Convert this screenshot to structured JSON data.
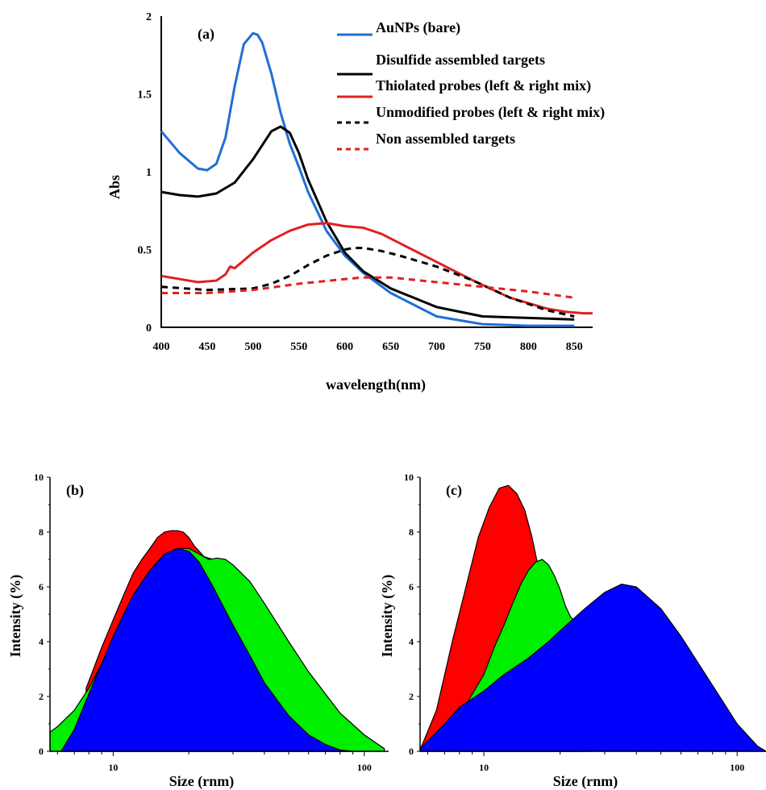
{
  "chart_data": [
    {
      "panel": "(a)",
      "type": "line",
      "xlabel": "wavelength(nm)",
      "ylabel": "Abs",
      "xlim": [
        400,
        870
      ],
      "ylim": [
        0,
        2
      ],
      "xticks": [
        "400",
        "450",
        "500",
        "550",
        "600",
        "650",
        "700",
        "750",
        "800",
        "850"
      ],
      "yticks": [
        "0",
        "0.5",
        "1",
        "1.5",
        "2"
      ],
      "grid": false,
      "legend_position": "top-right",
      "series": [
        {
          "name": "AuNPs (bare)",
          "color": "#1f6fd6",
          "dash": "solid",
          "x": [
            400,
            420,
            440,
            450,
            460,
            470,
            480,
            490,
            500,
            505,
            510,
            520,
            530,
            540,
            550,
            560,
            580,
            600,
            620,
            650,
            700,
            750,
            800,
            850
          ],
          "y": [
            1.26,
            1.12,
            1.02,
            1.01,
            1.05,
            1.22,
            1.55,
            1.82,
            1.89,
            1.88,
            1.83,
            1.63,
            1.38,
            1.18,
            1.03,
            0.87,
            0.62,
            0.46,
            0.35,
            0.22,
            0.07,
            0.02,
            0.01,
            0.01
          ]
        },
        {
          "name": "Disulfide assembled targets",
          "color": "#000000",
          "dash": "solid",
          "x": [
            400,
            420,
            440,
            460,
            480,
            500,
            510,
            520,
            530,
            540,
            550,
            560,
            580,
            600,
            620,
            650,
            700,
            750,
            800,
            850
          ],
          "y": [
            0.87,
            0.85,
            0.84,
            0.86,
            0.93,
            1.08,
            1.17,
            1.26,
            1.29,
            1.25,
            1.12,
            0.95,
            0.68,
            0.48,
            0.36,
            0.25,
            0.13,
            0.07,
            0.06,
            0.05
          ]
        },
        {
          "name": "Thiolated probes (left & right mix)",
          "color": "#e02020",
          "dash": "solid",
          "x": [
            400,
            420,
            440,
            460,
            470,
            475,
            480,
            500,
            520,
            540,
            560,
            580,
            590,
            600,
            620,
            640,
            660,
            700,
            740,
            780,
            820,
            840,
            860,
            870
          ],
          "y": [
            0.33,
            0.31,
            0.29,
            0.3,
            0.34,
            0.39,
            0.38,
            0.48,
            0.56,
            0.62,
            0.66,
            0.67,
            0.66,
            0.65,
            0.64,
            0.6,
            0.54,
            0.42,
            0.3,
            0.19,
            0.12,
            0.1,
            0.09,
            0.09
          ]
        },
        {
          "name": "Unmodified probes (left & right mix)",
          "color": "#000000",
          "dash": "dashed",
          "x": [
            400,
            450,
            500,
            520,
            540,
            560,
            580,
            600,
            610,
            620,
            640,
            660,
            700,
            740,
            780,
            820,
            850
          ],
          "y": [
            0.26,
            0.24,
            0.25,
            0.28,
            0.33,
            0.4,
            0.46,
            0.5,
            0.51,
            0.51,
            0.49,
            0.46,
            0.39,
            0.3,
            0.19,
            0.11,
            0.07
          ]
        },
        {
          "name": "Non assembled targets",
          "color": "#e02020",
          "dash": "dashed",
          "x": [
            400,
            450,
            500,
            550,
            600,
            620,
            650,
            700,
            750,
            800,
            850
          ],
          "y": [
            0.22,
            0.22,
            0.24,
            0.28,
            0.31,
            0.32,
            0.32,
            0.29,
            0.26,
            0.23,
            0.19
          ]
        }
      ]
    },
    {
      "panel": "(b)",
      "type": "area",
      "xlabel": "Size (rnm)",
      "ylabel": "Intensity (%)",
      "xscale": "log",
      "xlim": [
        5.6,
        125
      ],
      "ylim": [
        0,
        10
      ],
      "xticks": [
        "10",
        "100"
      ],
      "yticks": [
        "0",
        "2",
        "4",
        "6",
        "8",
        "10"
      ],
      "series": [
        {
          "color": "#ff0000",
          "x": [
            7.8,
            9,
            10,
            11,
            12,
            13,
            14,
            15,
            16,
            17,
            18,
            19,
            20,
            21,
            22,
            23,
            25,
            28,
            35,
            45,
            60,
            80,
            100,
            120
          ],
          "y": [
            2.3,
            3.8,
            4.8,
            5.7,
            6.5,
            7.0,
            7.4,
            7.8,
            8.0,
            8.05,
            8.05,
            8.0,
            7.8,
            7.5,
            7.3,
            7.1,
            7.0,
            6.9,
            6.0,
            4.6,
            2.8,
            1.2,
            0.4,
            0.1
          ]
        },
        {
          "color": "#00ee00",
          "x": [
            5.6,
            6,
            7,
            8,
            9,
            10,
            11,
            12,
            14,
            16,
            18,
            20,
            22,
            24,
            26,
            28,
            30,
            35,
            40,
            50,
            60,
            80,
            100,
            120
          ],
          "y": [
            0.7,
            0.9,
            1.5,
            2.3,
            3.2,
            4.0,
            4.8,
            5.6,
            6.6,
            7.2,
            7.4,
            7.4,
            7.2,
            7.0,
            7.05,
            7.0,
            6.8,
            6.2,
            5.4,
            4.0,
            2.9,
            1.4,
            0.6,
            0.1
          ]
        },
        {
          "color": "#0000ff",
          "x": [
            6.2,
            7,
            8,
            9,
            10,
            11,
            12,
            14,
            16,
            18,
            20,
            22,
            25,
            30,
            35,
            40,
            50,
            60,
            70,
            80,
            90
          ],
          "y": [
            0.0,
            0.8,
            2.1,
            3.2,
            4.2,
            5.0,
            5.7,
            6.6,
            7.2,
            7.4,
            7.3,
            6.9,
            6.0,
            4.6,
            3.5,
            2.5,
            1.3,
            0.6,
            0.25,
            0.05,
            0.0
          ]
        }
      ]
    },
    {
      "panel": "(c)",
      "type": "area",
      "xlabel": "Size (rnm)",
      "ylabel": "Intensity (%)",
      "xscale": "log",
      "xlim": [
        5.6,
        130
      ],
      "ylim": [
        0,
        10
      ],
      "xticks": [
        "10",
        "100"
      ],
      "yticks": [
        "0",
        "2",
        "4",
        "6",
        "8",
        "10"
      ],
      "series": [
        {
          "color": "#ff0000",
          "x": [
            5.6,
            6.5,
            7.5,
            8.5,
            9.5,
            10.5,
            11.5,
            12.5,
            13.5,
            14.5,
            15.5,
            16.5,
            17.5,
            19,
            21,
            24
          ],
          "y": [
            0.05,
            1.5,
            4.0,
            6.0,
            7.8,
            8.9,
            9.6,
            9.7,
            9.4,
            8.8,
            7.8,
            6.6,
            5.4,
            4.2,
            3.2,
            2.7
          ]
        },
        {
          "color": "#00ee00",
          "x": [
            8.5,
            10,
            11,
            12,
            13,
            14,
            15,
            16,
            17,
            18,
            19,
            20,
            21,
            22,
            24,
            26
          ],
          "y": [
            1.7,
            2.8,
            3.8,
            4.6,
            5.4,
            6.1,
            6.6,
            6.9,
            7.0,
            6.8,
            6.4,
            5.9,
            5.3,
            4.9,
            4.5,
            4.4
          ]
        },
        {
          "color": "#0000ff",
          "x": [
            5.6,
            7,
            8,
            10,
            12,
            15,
            18,
            20,
            25,
            30,
            35,
            40,
            50,
            60,
            80,
            100,
            120,
            130
          ],
          "y": [
            0.1,
            1.0,
            1.6,
            2.2,
            2.8,
            3.4,
            4.0,
            4.4,
            5.2,
            5.8,
            6.1,
            6.0,
            5.2,
            4.2,
            2.4,
            1.0,
            0.2,
            0.0
          ]
        }
      ]
    }
  ]
}
